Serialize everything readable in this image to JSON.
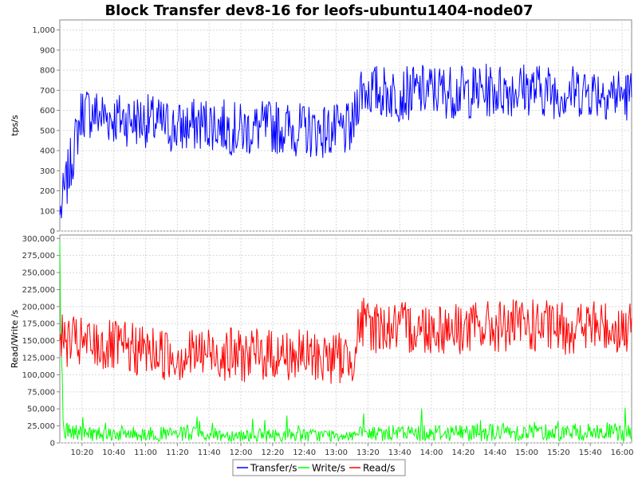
{
  "chart_data": {
    "type": "line",
    "title": "Block Transfer dev8-16 for leofs-ubuntu1404-node07",
    "x_ticks": [
      "10:20",
      "10:40",
      "11:00",
      "11:20",
      "11:40",
      "12:00",
      "12:20",
      "12:40",
      "13:00",
      "13:20",
      "13:40",
      "14:00",
      "14:20",
      "14:40",
      "15:00",
      "15:20",
      "15:40",
      "16:00"
    ],
    "x_range": [
      "10:06",
      "16:06"
    ],
    "panels": [
      {
        "ylabel": "tps/s",
        "ylim": [
          0,
          1050
        ],
        "y_ticks": [
          "0",
          "100",
          "200",
          "300",
          "400",
          "500",
          "600",
          "700",
          "800",
          "900",
          "1,000"
        ],
        "y_tick_values": [
          0,
          100,
          200,
          300,
          400,
          500,
          600,
          700,
          800,
          900,
          1000
        ],
        "grid": true,
        "series": [
          {
            "name": "Transfer/s",
            "color": "#0000ff",
            "x": [
              "10:06",
              "10:20",
              "10:40",
              "11:00",
              "11:20",
              "11:40",
              "12:00",
              "12:20",
              "12:40",
              "13:00",
              "13:10",
              "13:15",
              "13:20",
              "13:40",
              "14:00",
              "14:20",
              "14:40",
              "15:00",
              "15:20",
              "15:40",
              "16:00",
              "16:06"
            ],
            "values": [
              80,
              600,
              560,
              550,
              510,
              540,
              500,
              520,
              500,
              495,
              500,
              710,
              700,
              680,
              700,
              690,
              700,
              710,
              690,
              700,
              680,
              670
            ]
          }
        ]
      },
      {
        "ylabel": "Read/Write /s",
        "ylim": [
          0,
          305000
        ],
        "y_ticks": [
          "0",
          "25,000",
          "50,000",
          "75,000",
          "100,000",
          "125,000",
          "150,000",
          "175,000",
          "200,000",
          "225,000",
          "250,000",
          "275,000",
          "300,000"
        ],
        "y_tick_values": [
          0,
          25000,
          50000,
          75000,
          100000,
          125000,
          150000,
          175000,
          200000,
          225000,
          250000,
          275000,
          300000
        ],
        "grid": true,
        "series": [
          {
            "name": "Write/s",
            "color": "#00ff00",
            "x": [
              "10:06",
              "10:08",
              "10:20",
              "11:00",
              "12:00",
              "13:00",
              "13:20",
              "14:00",
              "15:00",
              "16:00",
              "16:06"
            ],
            "values": [
              295000,
              20000,
              15000,
              14000,
              12000,
              12000,
              14000,
              16000,
              17000,
              16000,
              15000
            ]
          },
          {
            "name": "Read/s",
            "color": "#ff0000",
            "x": [
              "10:06",
              "10:20",
              "10:40",
              "11:00",
              "11:20",
              "11:40",
              "12:00",
              "12:20",
              "12:40",
              "13:00",
              "13:10",
              "13:15",
              "13:20",
              "13:40",
              "14:00",
              "14:20",
              "14:40",
              "15:00",
              "15:20",
              "15:40",
              "16:00",
              "16:06"
            ],
            "values": [
              150000,
              145000,
              140000,
              135000,
              128000,
              133000,
              128000,
              130000,
              127000,
              125000,
              125000,
              175000,
              172000,
              168000,
              170000,
              168000,
              170000,
              172000,
              168000,
              172000,
              168000,
              165000
            ]
          }
        ]
      }
    ],
    "legend": {
      "placement": "bottom-center",
      "items": [
        "Transfer/s",
        "Write/s",
        "Read/s"
      ]
    }
  }
}
